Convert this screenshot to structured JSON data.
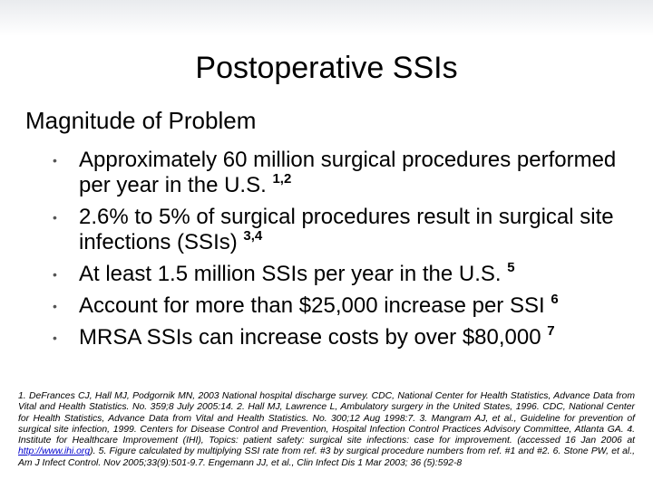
{
  "title": "Postoperative SSIs",
  "subtitle": "Magnitude of Problem",
  "bullets": [
    {
      "text": "Approximately 60 million surgical procedures performed per year in the U.S.",
      "sup": "1,2"
    },
    {
      "text": "2.6% to 5% of surgical procedures result in surgical site infections (SSIs)",
      "sup": "3,4"
    },
    {
      "text": "At least 1.5 million SSIs per year in the U.S.",
      "sup": "5"
    },
    {
      "text": "Account for more than $25,000 increase per SSI",
      "sup": "6"
    },
    {
      "text": "MRSA SSIs can increase costs by over $80,000",
      "sup": "7"
    }
  ],
  "references": {
    "before_link": "1. DeFrances CJ, Hall MJ, Podgornik MN, 2003 National hospital discharge survey. CDC, National Center for Health Statistics, Advance Data from Vital and Health Statistics. No. 359;8 July 2005:14. 2. Hall MJ, Lawrence L, Ambulatory surgery in the United States, 1996. CDC, National Center for Health Statistics, Advance Data from Vital and Health Statistics. No. 300;12 Aug 1998:7. 3. Mangram AJ, et al., Guideline for prevention of surgical site infection, 1999. Centers for Disease Control and Prevention, Hospital Infection Control Practices Advisory Committee, Atlanta GA. 4. Institute for Healthcare Improvement (IHI), Topics: patient safety: surgical site infections: case for improvement. (accessed 16 Jan 2006 at",
    "link": "http://www.ihi.org",
    "after_link": "). 5. Figure calculated by multiplying SSI rate from ref. #3 by surgical procedure numbers from ref. #1 and #2. 6. Stone PW, et al., Am J Infect Control. Nov 2005;33(9):501-9.7. Engemann JJ, et al., Clin Infect Dis 1 Mar 2003; 36 (5):592-8"
  }
}
